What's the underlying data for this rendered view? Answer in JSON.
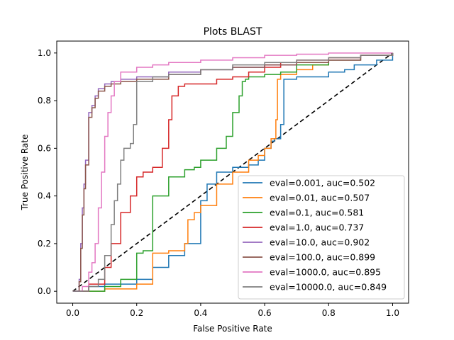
{
  "chart_data": {
    "type": "line",
    "title": "Plots BLAST",
    "xlabel": "False Positive Rate",
    "ylabel": "True Positive Rate",
    "xlim": [
      -0.05,
      1.05
    ],
    "ylim": [
      -0.05,
      1.05
    ],
    "xticks": [
      "0.0",
      "0.2",
      "0.4",
      "0.6",
      "0.8",
      "1.0"
    ],
    "yticks": [
      "0.0",
      "0.2",
      "0.4",
      "0.6",
      "0.8",
      "1.0"
    ],
    "grid": false,
    "legend_position": "lower-right",
    "diagonal": {
      "x": [
        0,
        1
      ],
      "y": [
        0,
        1
      ],
      "style": "dashed",
      "color": "#000000"
    },
    "series": [
      {
        "name": "eval=0.001, auc=0.502",
        "color": "#1f77b4",
        "x": [
          0,
          0.05,
          0.1,
          0.2,
          0.25,
          0.3,
          0.35,
          0.4,
          0.42,
          0.45,
          0.5,
          0.55,
          0.58,
          0.6,
          0.62,
          0.63,
          0.65,
          0.66,
          0.7,
          0.8,
          0.85,
          0.88,
          0.95,
          1.0
        ],
        "y": [
          0,
          0.02,
          0.03,
          0.05,
          0.1,
          0.15,
          0.2,
          0.38,
          0.45,
          0.5,
          0.52,
          0.53,
          0.55,
          0.6,
          0.63,
          0.64,
          0.7,
          0.89,
          0.9,
          0.92,
          0.93,
          0.95,
          0.97,
          1.0
        ]
      },
      {
        "name": "eval=0.01, auc=0.507",
        "color": "#ff7f0e",
        "x": [
          0,
          0.1,
          0.2,
          0.25,
          0.3,
          0.35,
          0.36,
          0.38,
          0.4,
          0.45,
          0.5,
          0.55,
          0.58,
          0.6,
          0.62,
          0.635,
          0.64,
          0.65,
          0.7,
          0.75,
          0.8,
          0.9,
          1.0
        ],
        "y": [
          0,
          0.01,
          0.03,
          0.16,
          0.17,
          0.2,
          0.3,
          0.33,
          0.36,
          0.45,
          0.5,
          0.55,
          0.57,
          0.6,
          0.64,
          0.72,
          0.89,
          0.91,
          0.93,
          0.95,
          0.97,
          0.99,
          1.0
        ]
      },
      {
        "name": "eval=0.1, auc=0.581",
        "color": "#2ca02c",
        "x": [
          0,
          0.1,
          0.15,
          0.2,
          0.22,
          0.25,
          0.3,
          0.35,
          0.38,
          0.4,
          0.45,
          0.48,
          0.5,
          0.52,
          0.53,
          0.54,
          0.55,
          0.6,
          0.65,
          0.7,
          0.8,
          0.9,
          1.0
        ],
        "y": [
          0,
          0.02,
          0.05,
          0.16,
          0.17,
          0.4,
          0.48,
          0.51,
          0.52,
          0.55,
          0.6,
          0.65,
          0.75,
          0.82,
          0.88,
          0.89,
          0.9,
          0.91,
          0.92,
          0.95,
          0.97,
          0.99,
          1.0
        ]
      },
      {
        "name": "eval=1.0, auc=0.737",
        "color": "#d62728",
        "x": [
          0,
          0.05,
          0.1,
          0.12,
          0.15,
          0.18,
          0.2,
          0.22,
          0.25,
          0.28,
          0.3,
          0.31,
          0.33,
          0.35,
          0.4,
          0.45,
          0.5,
          0.55,
          0.6,
          0.65,
          0.7,
          0.8,
          0.9,
          1.0
        ],
        "y": [
          0,
          0.03,
          0.1,
          0.2,
          0.33,
          0.4,
          0.48,
          0.5,
          0.52,
          0.6,
          0.72,
          0.82,
          0.86,
          0.87,
          0.87,
          0.89,
          0.9,
          0.92,
          0.94,
          0.96,
          0.97,
          0.98,
          0.99,
          1.0
        ]
      },
      {
        "name": "eval=10.0, auc=0.902",
        "color": "#9467bd",
        "x": [
          0,
          0.02,
          0.025,
          0.03,
          0.035,
          0.04,
          0.05,
          0.06,
          0.07,
          0.08,
          0.1,
          0.12,
          0.15,
          0.2,
          0.3,
          0.4,
          0.5,
          0.6,
          0.7,
          0.8,
          0.9,
          1.0
        ],
        "y": [
          0,
          0.05,
          0.2,
          0.35,
          0.45,
          0.55,
          0.75,
          0.78,
          0.82,
          0.85,
          0.87,
          0.88,
          0.89,
          0.9,
          0.92,
          0.93,
          0.94,
          0.95,
          0.96,
          0.97,
          0.99,
          1.0
        ]
      },
      {
        "name": "eval=100.0, auc=0.899",
        "color": "#8c564b",
        "x": [
          0,
          0.02,
          0.025,
          0.03,
          0.035,
          0.04,
          0.05,
          0.06,
          0.07,
          0.08,
          0.1,
          0.12,
          0.15,
          0.2,
          0.3,
          0.4,
          0.5,
          0.6,
          0.7,
          0.8,
          0.9,
          1.0
        ],
        "y": [
          0,
          0.04,
          0.18,
          0.32,
          0.43,
          0.53,
          0.73,
          0.77,
          0.81,
          0.84,
          0.86,
          0.87,
          0.88,
          0.89,
          0.91,
          0.93,
          0.94,
          0.95,
          0.96,
          0.97,
          0.99,
          1.0
        ]
      },
      {
        "name": "eval=1000.0, auc=0.895",
        "color": "#e377c2",
        "x": [
          0,
          0.03,
          0.05,
          0.06,
          0.07,
          0.08,
          0.09,
          0.1,
          0.11,
          0.12,
          0.13,
          0.15,
          0.2,
          0.25,
          0.3,
          0.4,
          0.5,
          0.6,
          0.7,
          0.8,
          0.9,
          1.0
        ],
        "y": [
          0,
          0.02,
          0.08,
          0.12,
          0.2,
          0.35,
          0.5,
          0.65,
          0.75,
          0.82,
          0.88,
          0.92,
          0.94,
          0.95,
          0.96,
          0.97,
          0.98,
          0.99,
          0.995,
          1.0,
          1.0,
          1.0
        ]
      },
      {
        "name": "eval=10000.0, auc=0.849",
        "color": "#7f7f7f",
        "x": [
          0,
          0.05,
          0.08,
          0.1,
          0.12,
          0.13,
          0.14,
          0.15,
          0.16,
          0.18,
          0.19,
          0.2,
          0.25,
          0.3,
          0.4,
          0.5,
          0.6,
          0.7,
          0.8,
          0.9,
          1.0
        ],
        "y": [
          0,
          0.02,
          0.05,
          0.15,
          0.28,
          0.38,
          0.45,
          0.55,
          0.6,
          0.62,
          0.7,
          0.88,
          0.9,
          0.91,
          0.93,
          0.95,
          0.96,
          0.97,
          0.98,
          0.99,
          1.0
        ]
      }
    ]
  }
}
